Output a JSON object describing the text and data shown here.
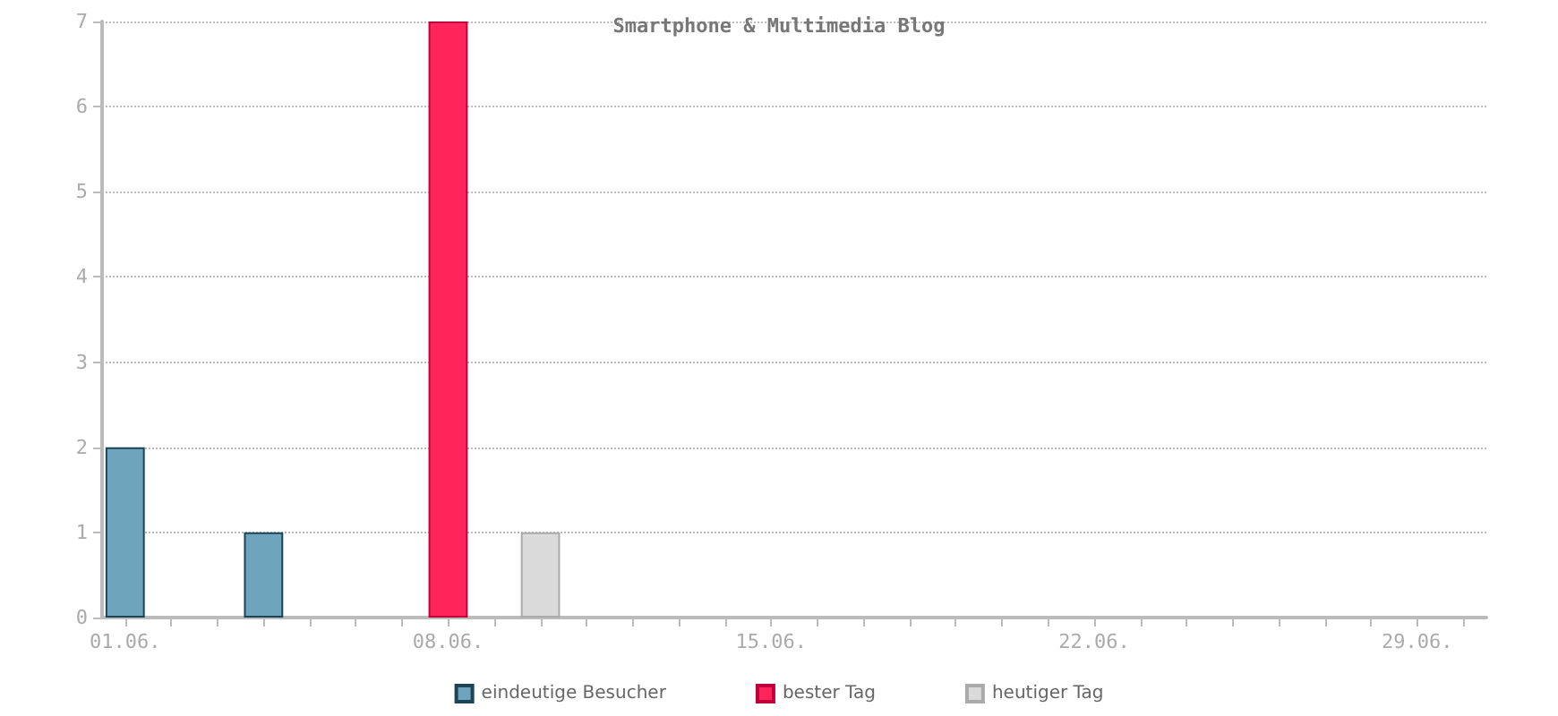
{
  "chart_data": {
    "type": "bar",
    "title": "Smartphone & Multimedia Blog",
    "categories": [
      "01.06.",
      null,
      null,
      null,
      null,
      null,
      null,
      "08.06.",
      null,
      null,
      null,
      null,
      null,
      null,
      "15.06.",
      null,
      null,
      null,
      null,
      null,
      null,
      "22.06.",
      null,
      null,
      null,
      null,
      null,
      null,
      "29.06.",
      null
    ],
    "series": [
      {
        "name": "eindeutige Besucher",
        "color": "#6ea4bc",
        "values": [
          2,
          null,
          null,
          1,
          null,
          null,
          null,
          null,
          null,
          null,
          null,
          null,
          null,
          null,
          null,
          null,
          null,
          null,
          null,
          null,
          null,
          null,
          null,
          null,
          null,
          null,
          null,
          null,
          null,
          null
        ]
      },
      {
        "name": "bester Tag",
        "color": "#ff2459",
        "values": [
          null,
          null,
          null,
          null,
          null,
          null,
          null,
          7,
          null,
          null,
          null,
          null,
          null,
          null,
          null,
          null,
          null,
          null,
          null,
          null,
          null,
          null,
          null,
          null,
          null,
          null,
          null,
          null,
          null,
          null
        ]
      },
      {
        "name": "heutiger Tag",
        "color": "#dadada",
        "values": [
          null,
          null,
          null,
          null,
          null,
          null,
          null,
          null,
          null,
          1,
          null,
          null,
          null,
          null,
          null,
          null,
          null,
          null,
          null,
          null,
          null,
          null,
          null,
          null,
          null,
          null,
          null,
          null,
          null,
          null
        ]
      }
    ],
    "stacked": true,
    "ylim": [
      0,
      7
    ],
    "yticks": [
      0,
      1,
      2,
      3,
      4,
      5,
      6,
      7
    ],
    "grid": "y",
    "legend": "bottom"
  }
}
